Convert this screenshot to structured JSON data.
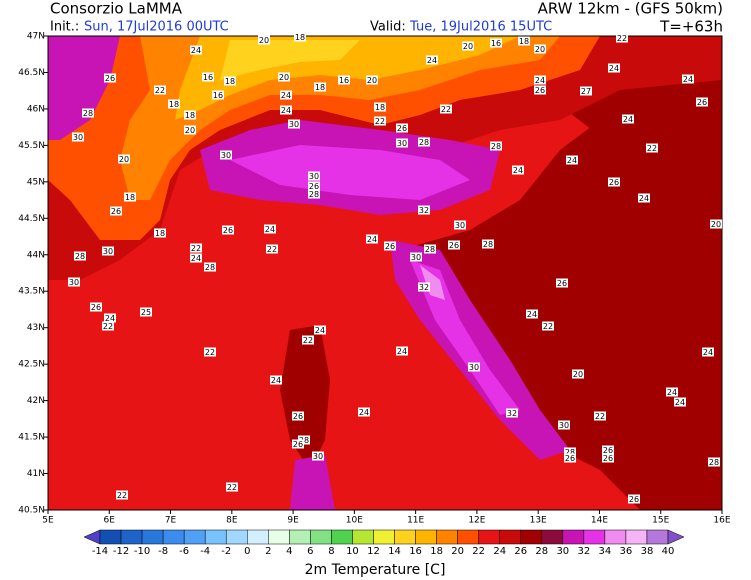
{
  "header": {
    "title": "Consorzio LaMMA",
    "model": "ARW 12km - (GFS 50km)",
    "init_label": "Init.:",
    "init": "Sun, 17Jul2016 00UTC",
    "valid_label": "Valid:",
    "valid": "Tue, 19Jul2016 15UTC",
    "lead": "T=+63h"
  },
  "map": {
    "xlim": [
      5,
      16
    ],
    "ylim": [
      40.5,
      47
    ],
    "xticks": [
      {
        "value": 5,
        "label": "5E"
      },
      {
        "value": 6,
        "label": "6E"
      },
      {
        "value": 7,
        "label": "7E"
      },
      {
        "value": 8,
        "label": "8E"
      },
      {
        "value": 9,
        "label": "9E"
      },
      {
        "value": 10,
        "label": "10E"
      },
      {
        "value": 11,
        "label": "11E"
      },
      {
        "value": 12,
        "label": "12E"
      },
      {
        "value": 13,
        "label": "13E"
      },
      {
        "value": 14,
        "label": "14E"
      },
      {
        "value": 15,
        "label": "15E"
      },
      {
        "value": 16,
        "label": "16E"
      }
    ],
    "yticks": [
      {
        "value": 40.5,
        "label": "40.5N"
      },
      {
        "value": 41,
        "label": "41N"
      },
      {
        "value": 41.5,
        "label": "41.5N"
      },
      {
        "value": 42,
        "label": "42N"
      },
      {
        "value": 42.5,
        "label": "42.5N"
      },
      {
        "value": 43,
        "label": "43N"
      },
      {
        "value": 43.5,
        "label": "43.5N"
      },
      {
        "value": 44,
        "label": "44N"
      },
      {
        "value": 44.5,
        "label": "44.5N"
      },
      {
        "value": 45,
        "label": "45N"
      },
      {
        "value": 45.5,
        "label": "45.5N"
      },
      {
        "value": 46,
        "label": "46N"
      },
      {
        "value": 46.5,
        "label": "46.5N"
      },
      {
        "value": 47,
        "label": "47N"
      }
    ],
    "stations": [
      24,
      20,
      18,
      20,
      16,
      18,
      20,
      22,
      24,
      26,
      16,
      18,
      20,
      18,
      16,
      20,
      24,
      26,
      24,
      24,
      22,
      16,
      24,
      27,
      28,
      18,
      18,
      24,
      18,
      30,
      22,
      22,
      26,
      24,
      30,
      20,
      26,
      30,
      28,
      28,
      22,
      20,
      30,
      24,
      30,
      26,
      28,
      24,
      26,
      18,
      24,
      26,
      32,
      30,
      20,
      24,
      26,
      18,
      24,
      26,
      22,
      28,
      26,
      28,
      22,
      30,
      28,
      24,
      30,
      28,
      30,
      32,
      26,
      26,
      24,
      22,
      25,
      24,
      22,
      24,
      22,
      22,
      24,
      24,
      30,
      20,
      24,
      24,
      24,
      24,
      26,
      32,
      22,
      30,
      28,
      26,
      28,
      26,
      26,
      26,
      30,
      28,
      22,
      22,
      26
    ]
  },
  "colorbar": {
    "title": "2m Temperature [C]",
    "levels": [
      -14,
      -12,
      -10,
      -8,
      -6,
      -4,
      -2,
      0,
      2,
      4,
      6,
      8,
      10,
      12,
      14,
      16,
      18,
      20,
      22,
      24,
      26,
      28,
      30,
      32,
      34,
      36,
      38,
      40
    ],
    "colors": [
      "#5040c8",
      "#1450b4",
      "#1e64c8",
      "#2878dc",
      "#3c8cf0",
      "#50a0f5",
      "#78c3ff",
      "#a0d8ff",
      "#d2f0ff",
      "#e6ffe6",
      "#b4f0b4",
      "#82e182",
      "#50d250",
      "#b4e632",
      "#f0f032",
      "#ffd21e",
      "#ffb400",
      "#ff8200",
      "#ff5000",
      "#e61414",
      "#c80a0a",
      "#a00000",
      "#8c0a3c",
      "#c814b4",
      "#e632e6",
      "#f08cf0",
      "#f5b4f5",
      "#b478dc",
      "#8250c8"
    ]
  }
}
